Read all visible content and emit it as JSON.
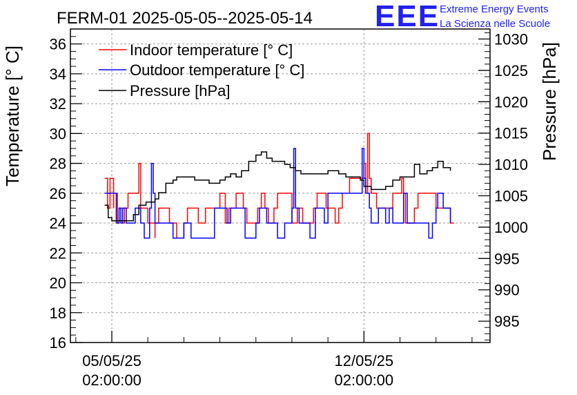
{
  "logo": {
    "letters": "EEE",
    "line1": "Extreme Energy Events",
    "line2": "La Scienza nelle Scuole"
  },
  "chart_data": {
    "type": "line",
    "title": "FERM-01 2025-05-05--2025-05-14",
    "ylabel_left": "Temperature [° C]",
    "ylabel_right": "Pressure [hPa]",
    "ylim_left": [
      16,
      37
    ],
    "ylim_right": [
      981.6,
      1031.6
    ],
    "left_ticks": [
      16,
      18,
      20,
      22,
      24,
      26,
      28,
      30,
      32,
      34,
      36
    ],
    "right_ticks": [
      985,
      990,
      995,
      1000,
      1005,
      1010,
      1015,
      1020,
      1025,
      1030
    ],
    "x_ticks": [
      {
        "day": 0,
        "date": "05/05/25",
        "time": "02:00:00"
      },
      {
        "day": 7,
        "date": "12/05/25",
        "time": "02:00:00"
      }
    ],
    "xlim_days": [
      -1.15,
      10.5
    ],
    "x_unit": "days since 05/05/25 02:00:00",
    "grid": true,
    "legend_position": "top-left",
    "series": [
      {
        "name": "Indoor temperature [° C]",
        "color": "#ff0000",
        "axis": "left",
        "x": [
          -0.2,
          -0.12,
          -0.12,
          -0.05,
          0.05,
          0.05,
          0.12,
          0.15,
          0.2,
          0.25,
          0.3,
          0.35,
          0.45,
          0.7,
          0.75,
          0.8,
          0.95,
          1.0,
          1.1,
          1.2,
          1.2,
          1.25,
          1.3,
          1.32,
          1.4,
          1.5,
          1.6,
          1.6,
          1.7,
          1.8,
          1.9,
          2.0,
          2.1,
          2.3,
          2.4,
          2.5,
          2.6,
          2.85,
          3.0,
          3.05,
          3.15,
          3.2,
          3.25,
          3.3,
          3.45,
          3.5,
          3.65,
          3.7,
          3.75,
          3.9,
          4.05,
          4.15,
          4.25,
          4.35,
          4.45,
          4.5,
          4.6,
          4.75,
          5.0,
          5.1,
          5.15,
          5.25,
          5.3,
          5.5,
          5.6,
          5.7,
          5.8,
          5.95,
          6.05,
          6.2,
          6.3,
          6.4,
          6.5,
          6.6,
          6.7,
          6.8,
          6.9,
          6.95,
          7.0,
          7.05,
          7.1,
          7.15,
          7.2,
          7.3,
          7.35,
          7.5,
          7.6,
          7.8,
          7.9,
          8.0,
          8.05,
          8.1,
          8.15,
          8.2,
          8.4,
          8.5,
          8.6,
          8.8,
          8.9,
          9.0,
          9.2,
          9.3,
          9.4,
          9.5
        ],
        "y": [
          27,
          27,
          25,
          27,
          25,
          26,
          24,
          24,
          25,
          25,
          24,
          25,
          26,
          26,
          28,
          25,
          25,
          24,
          24,
          23,
          24,
          24,
          25,
          25,
          25,
          25,
          25,
          24,
          24,
          23,
          23,
          24,
          25,
          25,
          24,
          24,
          25,
          25,
          26,
          26,
          24,
          24,
          25,
          25,
          26,
          26,
          25,
          25,
          24,
          24,
          25,
          26,
          25,
          24,
          24,
          25,
          26,
          26,
          24,
          24,
          25,
          25,
          24,
          24,
          25,
          26,
          26,
          25,
          25,
          24,
          25,
          26,
          26,
          27,
          27,
          27,
          27,
          27,
          28,
          26,
          30,
          27,
          26,
          26,
          25,
          25,
          25,
          26,
          26,
          26,
          27,
          26,
          24,
          24,
          25,
          26,
          26,
          26,
          26,
          25,
          25,
          25,
          24,
          24
        ],
        "draw_from": 0
      },
      {
        "name": "Outdoor temperature [° C]",
        "color": "#0000ff",
        "axis": "left",
        "x": [
          -0.2,
          0.05,
          0.15,
          0.2,
          0.25,
          0.3,
          0.4,
          0.6,
          0.65,
          0.7,
          0.8,
          0.9,
          1.05,
          1.1,
          1.15,
          1.2,
          1.3,
          1.5,
          1.7,
          1.9,
          2.0,
          2.1,
          2.2,
          2.4,
          2.6,
          2.85,
          3.0,
          3.2,
          3.25,
          3.3,
          3.5,
          3.7,
          3.9,
          4.0,
          4.1,
          4.2,
          4.3,
          4.4,
          4.6,
          4.8,
          5.0,
          5.05,
          5.1,
          5.2,
          5.3,
          5.5,
          5.65,
          5.8,
          5.9,
          6.0,
          6.5,
          6.9,
          6.95,
          7.0,
          7.05,
          7.1,
          7.15,
          7.2,
          7.3,
          7.4,
          7.5,
          7.6,
          7.7,
          7.8,
          7.9,
          8.0,
          8.1,
          8.2,
          8.3,
          8.5,
          8.7,
          8.8,
          8.9,
          9.0,
          9.05,
          9.1,
          9.2,
          9.4
        ],
        "y": [
          26,
          26,
          24,
          25,
          24,
          25,
          24,
          24,
          25,
          25,
          24,
          23,
          25,
          28,
          26,
          24,
          24,
          24,
          23,
          23,
          24,
          24,
          23,
          23,
          23,
          25,
          25,
          24,
          24,
          25,
          25,
          23,
          23,
          24,
          25,
          25,
          24,
          24,
          23,
          24,
          25,
          29,
          25,
          24,
          24,
          23,
          25,
          25,
          24,
          26,
          26,
          26,
          29,
          27,
          26,
          26,
          25,
          24,
          24,
          25,
          25,
          24,
          25,
          24,
          24,
          24,
          26,
          24,
          24,
          24,
          24,
          23,
          24,
          25,
          26,
          26,
          25,
          24
        ],
        "draw_from": 0
      },
      {
        "name": "Pressure [hPa]",
        "color": "#000000",
        "axis": "right",
        "x": [
          -0.2,
          -0.1,
          0.0,
          0.15,
          0.35,
          0.6,
          0.75,
          0.95,
          1.2,
          1.3,
          1.5,
          1.7,
          1.8,
          1.9,
          2.0,
          2.15,
          2.3,
          2.5,
          2.7,
          2.85,
          3.0,
          3.15,
          3.3,
          3.45,
          3.6,
          3.8,
          4.0,
          4.15,
          4.3,
          4.45,
          4.6,
          4.8,
          4.95,
          5.1,
          5.25,
          5.4,
          5.55,
          5.7,
          5.85,
          6.0,
          6.15,
          6.3,
          6.5,
          6.7,
          6.9,
          7.0,
          7.2,
          7.4,
          7.6,
          7.8,
          8.0,
          8.2,
          8.4,
          8.55,
          8.65,
          8.75,
          8.9,
          9.05,
          9.2,
          9.4
        ],
        "y": [
          1003.5,
          1001.5,
          1001,
          1001,
          1001,
          1002,
          1003.5,
          1004,
          1004.5,
          1005.5,
          1007,
          1007.5,
          1008,
          1008,
          1008,
          1008,
          1007.5,
          1007.5,
          1007,
          1007,
          1007.5,
          1008,
          1008.5,
          1008,
          1009,
          1010.5,
          1011.5,
          1012,
          1011,
          1010.5,
          1010.5,
          1010,
          1009.5,
          1009,
          1008.5,
          1008.5,
          1008.5,
          1008.5,
          1008.5,
          1009,
          1009,
          1008.5,
          1008,
          1008,
          1007.5,
          1006.5,
          1006,
          1006,
          1006.5,
          1007.5,
          1008,
          1008,
          1010,
          1008.5,
          1008.5,
          1009,
          1009.5,
          1010.5,
          1009.5,
          1009
        ],
        "draw_from": 0
      }
    ]
  }
}
